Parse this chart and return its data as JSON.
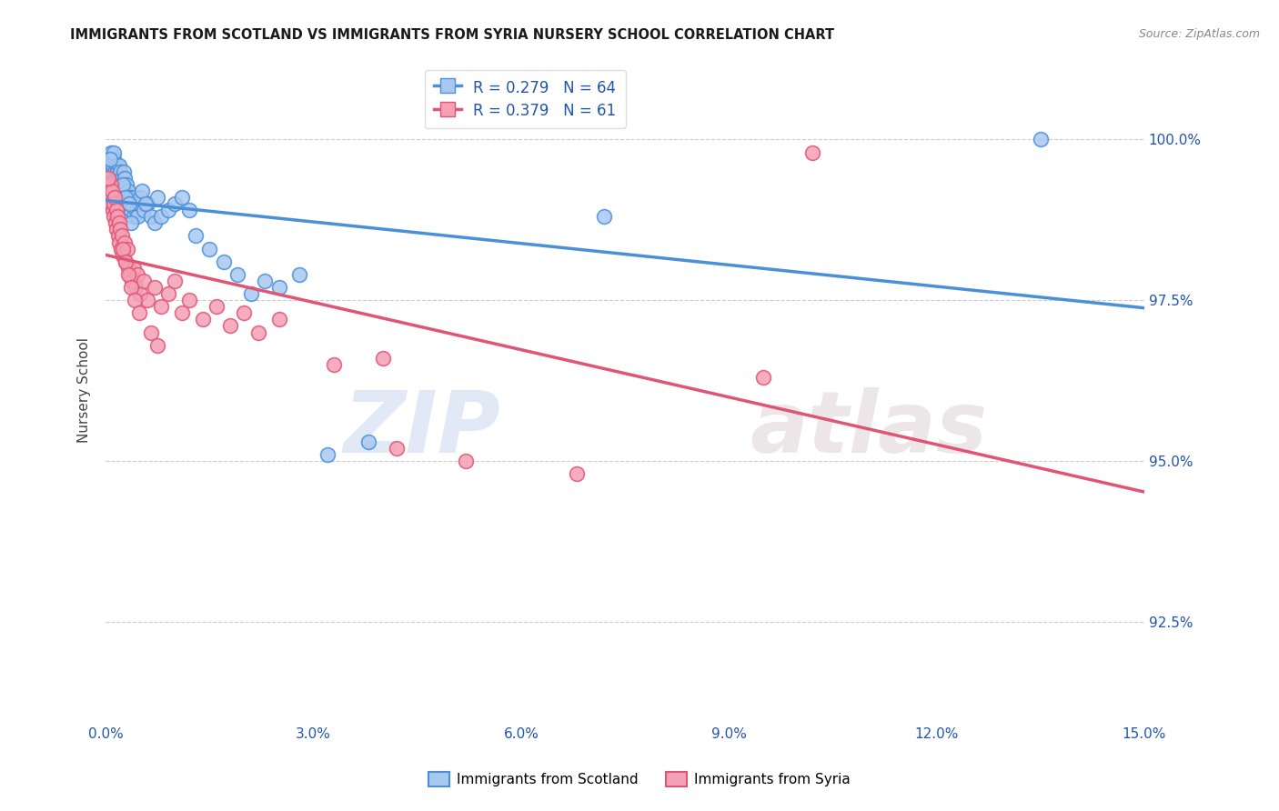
{
  "title": "IMMIGRANTS FROM SCOTLAND VS IMMIGRANTS FROM SYRIA NURSERY SCHOOL CORRELATION CHART",
  "source": "Source: ZipAtlas.com",
  "ylabel": "Nursery School",
  "yticks": [
    92.5,
    95.0,
    97.5,
    100.0
  ],
  "ytick_labels": [
    "92.5%",
    "95.0%",
    "97.5%",
    "100.0%"
  ],
  "xmin": 0.0,
  "xmax": 15.0,
  "ymin": 91.0,
  "ymax": 101.2,
  "scotland_color": "#a8c8f0",
  "syria_color": "#f4a0b5",
  "scotland_line_color": "#4a90d9",
  "syria_line_color": "#e05575",
  "scotland_R": 0.279,
  "scotland_N": 64,
  "syria_R": 0.379,
  "syria_N": 61,
  "legend_label_scotland": "Immigrants from Scotland",
  "legend_label_syria": "Immigrants from Syria",
  "watermark_zip": "ZIP",
  "watermark_atlas": "atlas",
  "scotland_x": [
    0.05,
    0.07,
    0.08,
    0.09,
    0.1,
    0.11,
    0.12,
    0.13,
    0.14,
    0.15,
    0.16,
    0.17,
    0.18,
    0.19,
    0.2,
    0.21,
    0.22,
    0.23,
    0.25,
    0.26,
    0.27,
    0.28,
    0.3,
    0.31,
    0.32,
    0.33,
    0.35,
    0.36,
    0.38,
    0.4,
    0.42,
    0.44,
    0.46,
    0.48,
    0.5,
    0.55,
    0.6,
    0.65,
    0.7,
    0.75,
    0.8,
    0.9,
    1.0,
    1.1,
    1.2,
    1.3,
    1.5,
    1.7,
    1.9,
    2.1,
    2.3,
    2.5,
    2.8,
    0.06,
    0.24,
    0.29,
    0.34,
    0.37,
    0.52,
    0.58,
    3.2,
    3.8,
    7.2,
    13.5
  ],
  "scotland_y": [
    99.7,
    99.6,
    99.8,
    99.5,
    99.6,
    99.7,
    99.8,
    99.5,
    99.4,
    99.6,
    99.3,
    99.5,
    99.4,
    99.6,
    99.3,
    99.5,
    99.2,
    99.4,
    99.3,
    99.5,
    99.4,
    99.2,
    99.3,
    99.1,
    99.2,
    99.0,
    99.1,
    98.9,
    99.0,
    98.8,
    99.1,
    98.9,
    98.8,
    99.0,
    99.1,
    98.9,
    99.0,
    98.8,
    98.7,
    99.1,
    98.8,
    98.9,
    99.0,
    99.1,
    98.9,
    98.5,
    98.3,
    98.1,
    97.9,
    97.6,
    97.8,
    97.7,
    97.9,
    99.7,
    99.3,
    99.1,
    99.0,
    98.7,
    99.2,
    99.0,
    95.1,
    95.3,
    98.8,
    100.0
  ],
  "syria_x": [
    0.03,
    0.05,
    0.06,
    0.07,
    0.08,
    0.09,
    0.1,
    0.11,
    0.12,
    0.13,
    0.14,
    0.15,
    0.16,
    0.17,
    0.18,
    0.19,
    0.2,
    0.21,
    0.22,
    0.23,
    0.25,
    0.27,
    0.29,
    0.31,
    0.33,
    0.35,
    0.38,
    0.4,
    0.43,
    0.46,
    0.5,
    0.55,
    0.6,
    0.7,
    0.8,
    0.9,
    1.0,
    1.1,
    1.2,
    1.4,
    1.6,
    1.8,
    2.0,
    2.2,
    2.5,
    0.04,
    0.24,
    0.28,
    0.32,
    0.36,
    0.42,
    0.48,
    0.65,
    0.75,
    3.3,
    4.0,
    4.2,
    5.2,
    6.8,
    9.5,
    10.2
  ],
  "syria_y": [
    99.3,
    99.2,
    99.1,
    99.3,
    99.0,
    99.2,
    98.9,
    99.0,
    98.8,
    99.1,
    98.7,
    98.9,
    98.6,
    98.8,
    98.5,
    98.7,
    98.4,
    98.6,
    98.3,
    98.5,
    98.2,
    98.4,
    98.1,
    98.3,
    98.0,
    97.9,
    97.8,
    98.0,
    97.7,
    97.9,
    97.6,
    97.8,
    97.5,
    97.7,
    97.4,
    97.6,
    97.8,
    97.3,
    97.5,
    97.2,
    97.4,
    97.1,
    97.3,
    97.0,
    97.2,
    99.4,
    98.3,
    98.1,
    97.9,
    97.7,
    97.5,
    97.3,
    97.0,
    96.8,
    96.5,
    96.6,
    95.2,
    95.0,
    94.8,
    96.3,
    99.8
  ]
}
